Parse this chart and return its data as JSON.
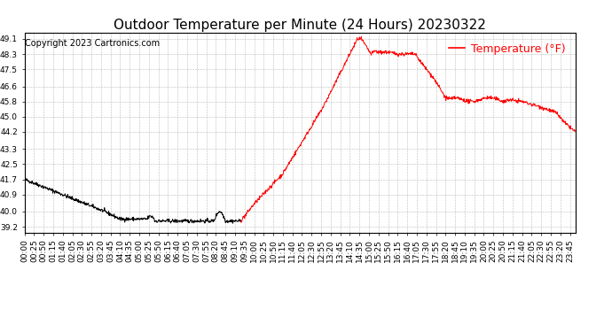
{
  "title": "Outdoor Temperature per Minute (24 Hours) 20230322",
  "copyright_text": "Copyright 2023 Cartronics.com",
  "legend_label": "Temperature (°F)",
  "line_color": "red",
  "line_color_early": "black",
  "background_color": "white",
  "grid_color": "#aaaaaa",
  "yticks": [
    39.2,
    40.0,
    40.9,
    41.7,
    42.5,
    43.3,
    44.2,
    45.0,
    45.8,
    46.6,
    47.5,
    48.3,
    49.1
  ],
  "ylim": [
    38.9,
    49.4
  ],
  "title_fontsize": 11,
  "tick_fontsize": 6.5,
  "legend_fontsize": 9,
  "copyright_fontsize": 7,
  "switch_minute": 565
}
